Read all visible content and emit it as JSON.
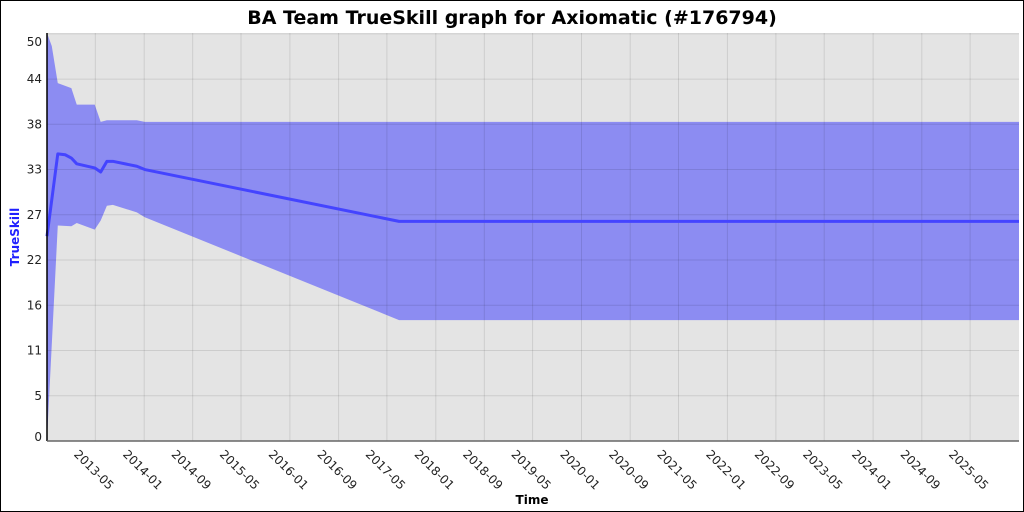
{
  "chart_data": {
    "type": "area",
    "title": "BA Team TrueSkill graph for Axiomatic (#176794)",
    "xlabel": "Time",
    "ylabel": "TrueSkill",
    "xlim": [
      "2012-09-01",
      "2026-01-01"
    ],
    "ylim": [
      0,
      49.6
    ],
    "grid": true,
    "x_ticks": [
      "2013-05",
      "2014-01",
      "2014-09",
      "2015-05",
      "2016-01",
      "2016-09",
      "2017-05",
      "2018-01",
      "2018-09",
      "2019-05",
      "2020-01",
      "2020-09",
      "2021-05",
      "2022-01",
      "2022-09",
      "2023-05",
      "2024-01",
      "2024-09",
      "2025-05"
    ],
    "y_ticks": [
      {
        "value": 0,
        "label": "0"
      },
      {
        "value": 5.5,
        "label": "5"
      },
      {
        "value": 11,
        "label": "11"
      },
      {
        "value": 16.5,
        "label": "16"
      },
      {
        "value": 22,
        "label": "22"
      },
      {
        "value": 27.5,
        "label": "27"
      },
      {
        "value": 33,
        "label": "33"
      },
      {
        "value": 38.5,
        "label": "38"
      },
      {
        "value": 44,
        "label": "44"
      },
      {
        "value": 49.5,
        "label": "50"
      }
    ],
    "colors": {
      "line": "#4444ff",
      "band": "#8c8cf2",
      "background": "#e4e4e4",
      "ylabel": "#2020ff"
    },
    "series": [
      {
        "role": "mean",
        "points": [
          [
            "2012-09-01",
            24.9
          ],
          [
            "2012-10-25",
            34.9
          ],
          [
            "2012-12-01",
            34.8
          ],
          [
            "2013-01-01",
            34.4
          ],
          [
            "2013-01-28",
            33.7
          ],
          [
            "2013-04-28",
            33.2
          ],
          [
            "2013-05-28",
            32.7
          ],
          [
            "2013-06-28",
            34.0
          ],
          [
            "2013-07-28",
            34.0
          ],
          [
            "2013-11-25",
            33.4
          ],
          [
            "2014-01-04",
            33.0
          ],
          [
            "2017-07-01",
            26.7
          ],
          [
            "2026-01-01",
            26.7
          ]
        ]
      },
      {
        "role": "upper",
        "points": [
          [
            "2012-09-01",
            49.6
          ],
          [
            "2012-09-25",
            48.0
          ],
          [
            "2012-10-25",
            43.5
          ],
          [
            "2013-01-01",
            42.9
          ],
          [
            "2013-01-28",
            40.9
          ],
          [
            "2013-04-28",
            40.9
          ],
          [
            "2013-05-28",
            38.8
          ],
          [
            "2013-06-28",
            39.0
          ],
          [
            "2013-11-25",
            39.0
          ],
          [
            "2014-01-04",
            38.8
          ],
          [
            "2026-01-01",
            38.8
          ]
        ]
      },
      {
        "role": "lower",
        "points": [
          [
            "2012-09-01",
            0.2
          ],
          [
            "2012-10-25",
            26.2
          ],
          [
            "2013-01-01",
            26.1
          ],
          [
            "2013-01-28",
            26.5
          ],
          [
            "2013-04-28",
            25.7
          ],
          [
            "2013-05-28",
            26.8
          ],
          [
            "2013-06-28",
            28.6
          ],
          [
            "2013-07-28",
            28.7
          ],
          [
            "2013-11-25",
            27.8
          ],
          [
            "2014-01-04",
            27.2
          ],
          [
            "2017-07-01",
            14.7
          ],
          [
            "2026-01-01",
            14.7
          ]
        ]
      }
    ]
  }
}
